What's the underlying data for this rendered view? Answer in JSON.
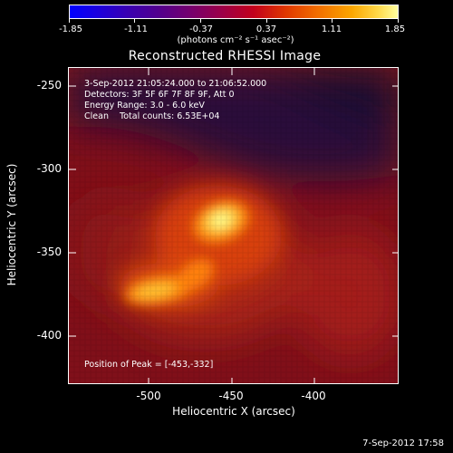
{
  "colorbar": {
    "ticks": [
      "-1.85",
      "-1.11",
      "-0.37",
      "0.37",
      "1.11",
      "1.85"
    ],
    "units": "(photons cm⁻² s⁻¹ asec⁻²)"
  },
  "title": "Reconstructed RHESSI Image",
  "info": {
    "time_range": "3-Sep-2012 21:05:24.000 to 21:06:52.000",
    "detectors": "Detectors: 3F 5F 6F 7F 8F 9F, Att 0",
    "energy_range": "Energy Range: 3.0 - 6.0 keV",
    "method_counts": "Clean    Total counts: 6.53E+04",
    "peak_position": "Position of Peak = [-453,-332]"
  },
  "axes": {
    "xlabel": "Heliocentric X (arcsec)",
    "ylabel": "Heliocentric Y (arcsec)",
    "x_ticks": [
      "-500",
      "-450",
      "-400"
    ],
    "y_ticks": [
      "-250",
      "-300",
      "-350",
      "-400"
    ]
  },
  "footer": "7-Sep-2012 17:58",
  "colors": {
    "background": "#000000",
    "frame": "#ffffff"
  }
}
